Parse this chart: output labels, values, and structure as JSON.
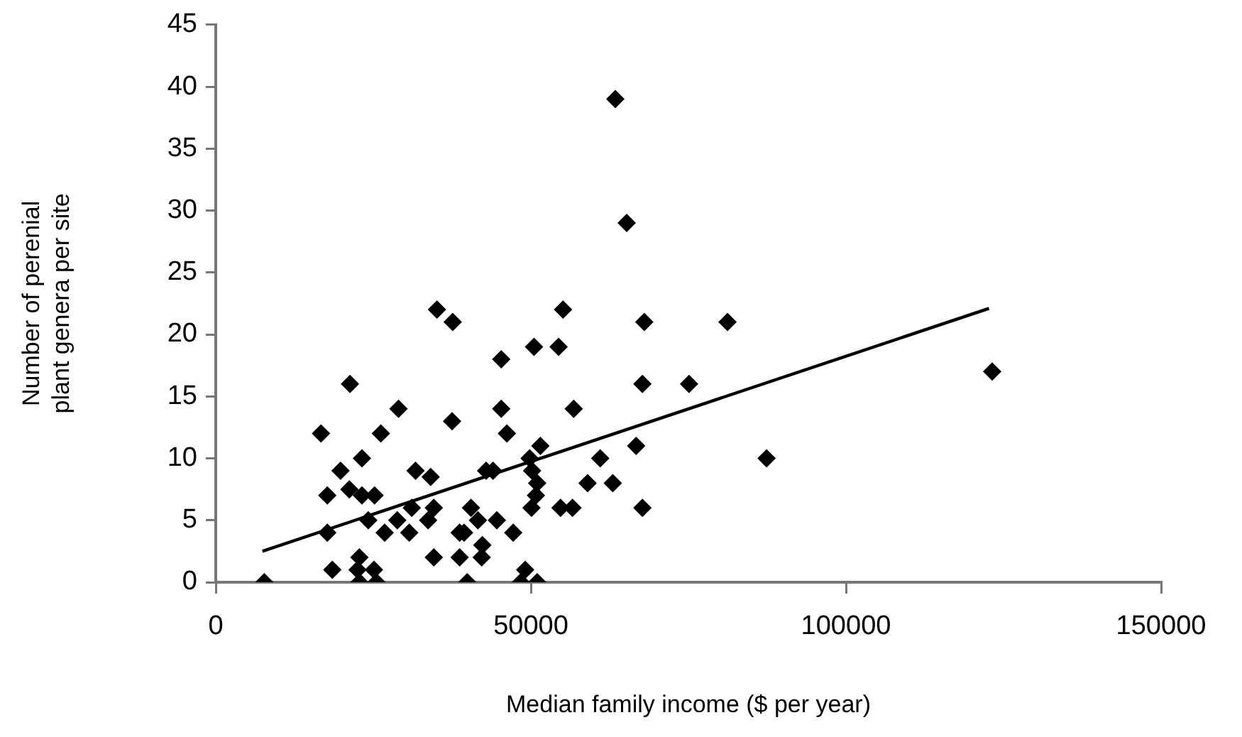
{
  "chart_data": {
    "type": "scatter",
    "xlabel": "Median family income ($ per year)",
    "ylabel": "Number of perenial\nplant genera per site",
    "xlim": [
      0,
      150000
    ],
    "xticks": [
      0,
      50000,
      100000,
      150000
    ],
    "ylim": [
      0,
      45
    ],
    "yticks": [
      0,
      5,
      10,
      15,
      20,
      25,
      30,
      35,
      40,
      45
    ],
    "grid": false,
    "legend": false,
    "marker": "diamond",
    "series": [
      {
        "type": "scatter",
        "color": "#000000",
        "x": [
          7700,
          16700,
          17700,
          17700,
          18500,
          21300,
          19800,
          21200,
          23200,
          25200,
          23200,
          26200,
          29000,
          24200,
          26800,
          28800,
          30700,
          31700,
          34100,
          31100,
          34600,
          33700,
          22800,
          22500,
          25100,
          22800,
          25500,
          34600,
          35100,
          37600,
          37500,
          39900,
          38700,
          38700,
          39400,
          40500,
          41600,
          42300,
          42200,
          44600,
          47200,
          45300,
          45300,
          46200,
          42900,
          44000,
          50500,
          54400,
          55100,
          51500,
          49800,
          50200,
          51000,
          50800,
          50100,
          54700,
          49100,
          48400,
          51000,
          63400,
          65200,
          68000,
          81200,
          67700,
          75100,
          56800,
          61000,
          66700,
          87400,
          59000,
          63000,
          56600,
          67700,
          123200
        ],
        "values": [
          0,
          12,
          7,
          4,
          1,
          16,
          9,
          7.5,
          7,
          7,
          10,
          12,
          14,
          5,
          4,
          5,
          4,
          9,
          8.5,
          6,
          6,
          5,
          2,
          1,
          1,
          0,
          0,
          2,
          22,
          21,
          13,
          0,
          2,
          4,
          4,
          6,
          5,
          3,
          2,
          5,
          4,
          18,
          14,
          12,
          9,
          9,
          19,
          19,
          22,
          11,
          10,
          9,
          8,
          7,
          6,
          6,
          1,
          0,
          0,
          39,
          29,
          21,
          21,
          16,
          16,
          14,
          10,
          11,
          10,
          8,
          8,
          6,
          6,
          17
        ]
      },
      {
        "type": "line",
        "color": "#000000",
        "marker": "none",
        "x": [
          7400,
          122700
        ],
        "values": [
          2.5,
          22.1
        ]
      }
    ]
  }
}
